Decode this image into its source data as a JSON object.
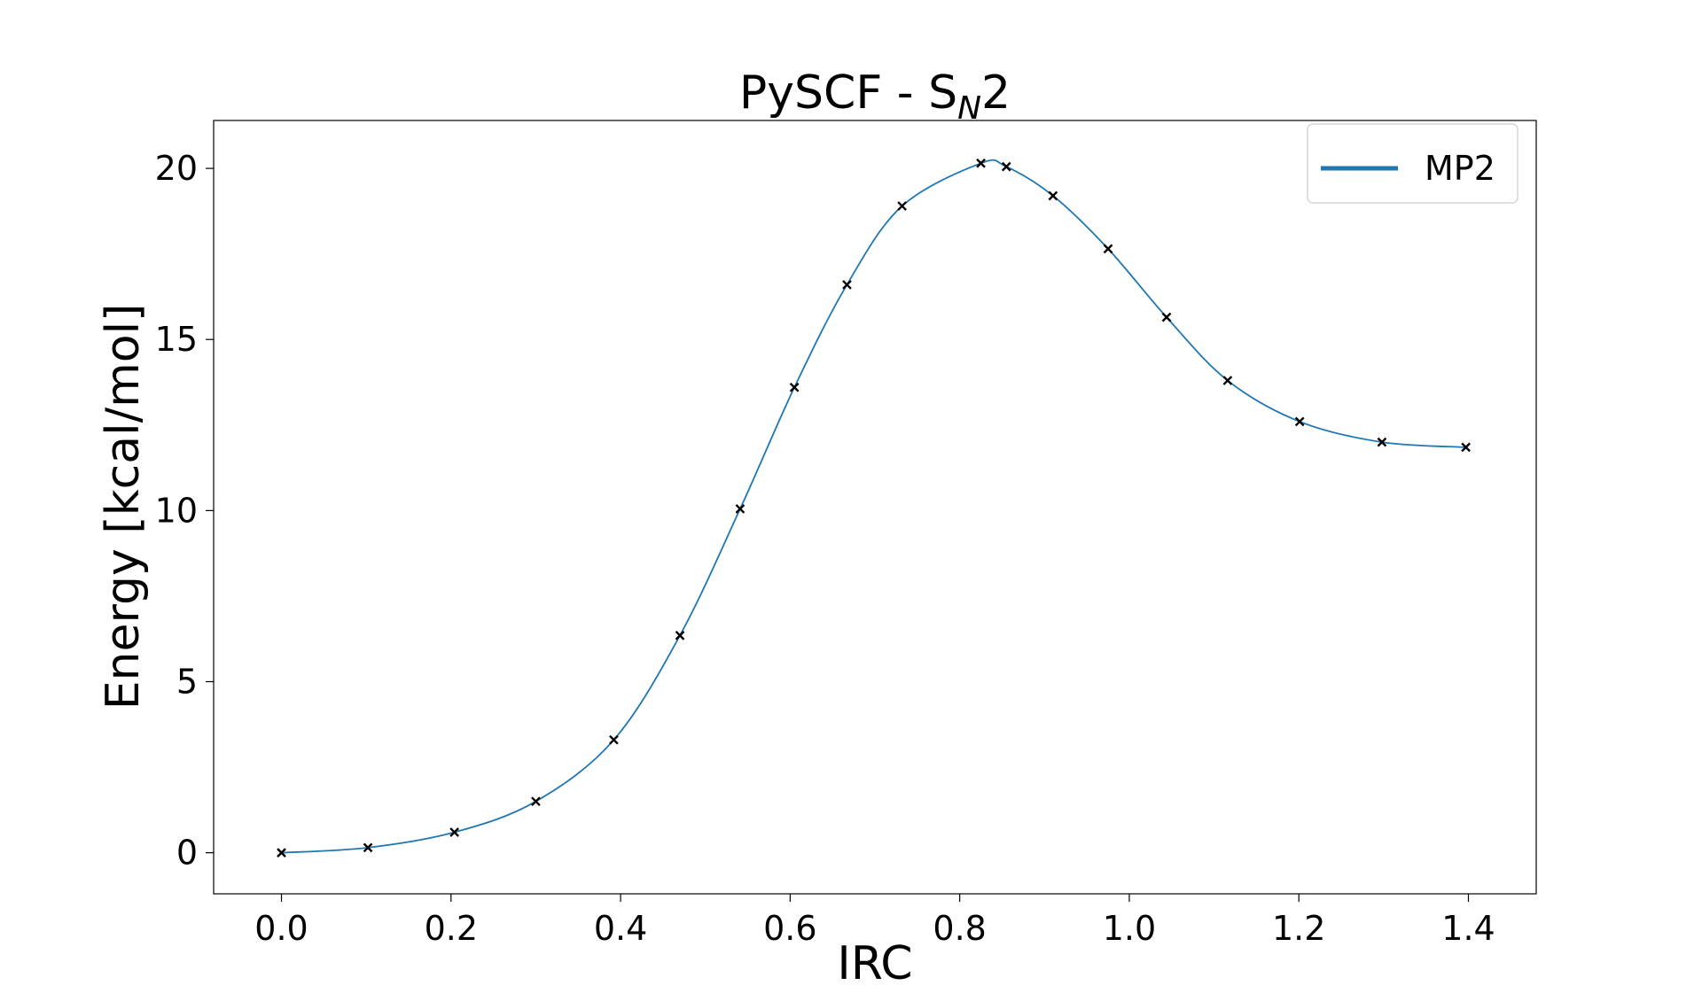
{
  "chart_data": {
    "type": "line",
    "title": "PySCF - S",
    "title_subscript": "N",
    "title_suffix": "2",
    "xlabel": "IRC",
    "ylabel": "Energy [kcal/mol]",
    "xlim": [
      -0.08,
      1.48
    ],
    "ylim": [
      -1.2,
      21.4
    ],
    "xticks": [
      0.0,
      0.2,
      0.4,
      0.6,
      0.8,
      1.0,
      1.2,
      1.4
    ],
    "xtick_labels": [
      "0.0",
      "0.2",
      "0.4",
      "0.6",
      "0.8",
      "1.0",
      "1.2",
      "1.4"
    ],
    "yticks": [
      0,
      5,
      10,
      15,
      20
    ],
    "ytick_labels": [
      "0",
      "5",
      "10",
      "15",
      "20"
    ],
    "grid": false,
    "legend_position": "top-right",
    "series": [
      {
        "name": "MP2",
        "color": "#1f77b4",
        "marker": "x",
        "marker_color": "#000000",
        "x": [
          0.0,
          0.102,
          0.204,
          0.3,
          0.392,
          0.47,
          0.541,
          0.605,
          0.667,
          0.732,
          0.825,
          0.855,
          0.91,
          0.975,
          1.044,
          1.116,
          1.201,
          1.298,
          1.397
        ],
        "y": [
          0.0,
          0.15,
          0.6,
          1.5,
          3.3,
          6.35,
          10.05,
          13.6,
          16.6,
          18.9,
          20.15,
          20.05,
          19.2,
          17.65,
          15.65,
          13.8,
          12.6,
          12.0,
          11.85
        ]
      }
    ]
  }
}
